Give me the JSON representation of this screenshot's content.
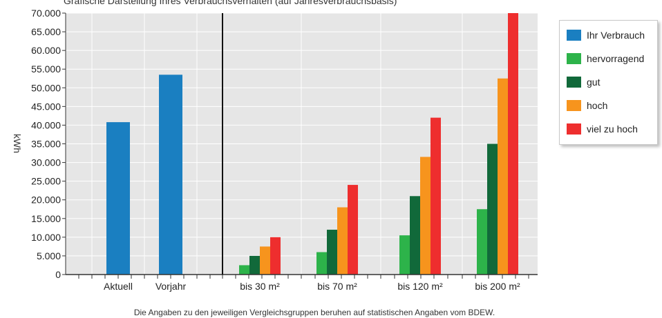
{
  "chart_data": {
    "type": "bar",
    "title": "Grafische Darstellung Ihres Verbrauchsverhalten (auf Jahresverbrauchsbasis)",
    "ylabel": "kWh",
    "ylim": [
      0,
      70000
    ],
    "yticks": [
      "0",
      "5.000",
      "10.000",
      "15.000",
      "20.000",
      "25.000",
      "30.000",
      "35.000",
      "40.000",
      "45.000",
      "50.000",
      "55.000",
      "60.000",
      "65.000",
      "70.000"
    ],
    "grid": true,
    "legend_position": "right",
    "groups": [
      {
        "label": "Aktuell",
        "bars": [
          {
            "series": "Ihr Verbrauch",
            "value": 40800
          }
        ]
      },
      {
        "label": "Vorjahr",
        "bars": [
          {
            "series": "Ihr Verbrauch",
            "value": 53500
          }
        ]
      },
      {
        "label": "bis 30 m²",
        "bars": [
          {
            "series": "hervorragend",
            "value": 2500
          },
          {
            "series": "gut",
            "value": 5000
          },
          {
            "series": "hoch",
            "value": 7500
          },
          {
            "series": "viel zu hoch",
            "value": 10000
          }
        ]
      },
      {
        "label": "bis 70 m²",
        "bars": [
          {
            "series": "hervorragend",
            "value": 6000
          },
          {
            "series": "gut",
            "value": 12000
          },
          {
            "series": "hoch",
            "value": 18000
          },
          {
            "series": "viel zu hoch",
            "value": 24000
          }
        ]
      },
      {
        "label": "bis 120 m²",
        "bars": [
          {
            "series": "hervorragend",
            "value": 10500
          },
          {
            "series": "gut",
            "value": 21000
          },
          {
            "series": "hoch",
            "value": 31500
          },
          {
            "series": "viel zu hoch",
            "value": 42000
          }
        ]
      },
      {
        "label": "bis 200 m²",
        "bars": [
          {
            "series": "hervorragend",
            "value": 17500
          },
          {
            "series": "gut",
            "value": 35000
          },
          {
            "series": "hoch",
            "value": 52500
          },
          {
            "series": "viel zu hoch",
            "value": 70000
          }
        ]
      }
    ],
    "series": [
      {
        "name": "Ihr Verbrauch",
        "color": "#1a7fc1"
      },
      {
        "name": "hervorragend",
        "color": "#2db34a"
      },
      {
        "name": "gut",
        "color": "#11693a"
      },
      {
        "name": "hoch",
        "color": "#f7941d"
      },
      {
        "name": "viel zu hoch",
        "color": "#ee2e2e"
      }
    ],
    "footnote": "Die Angaben zu den jeweiligen Vergleichsgruppen beruhen auf statistischen Angaben vom BDEW."
  }
}
